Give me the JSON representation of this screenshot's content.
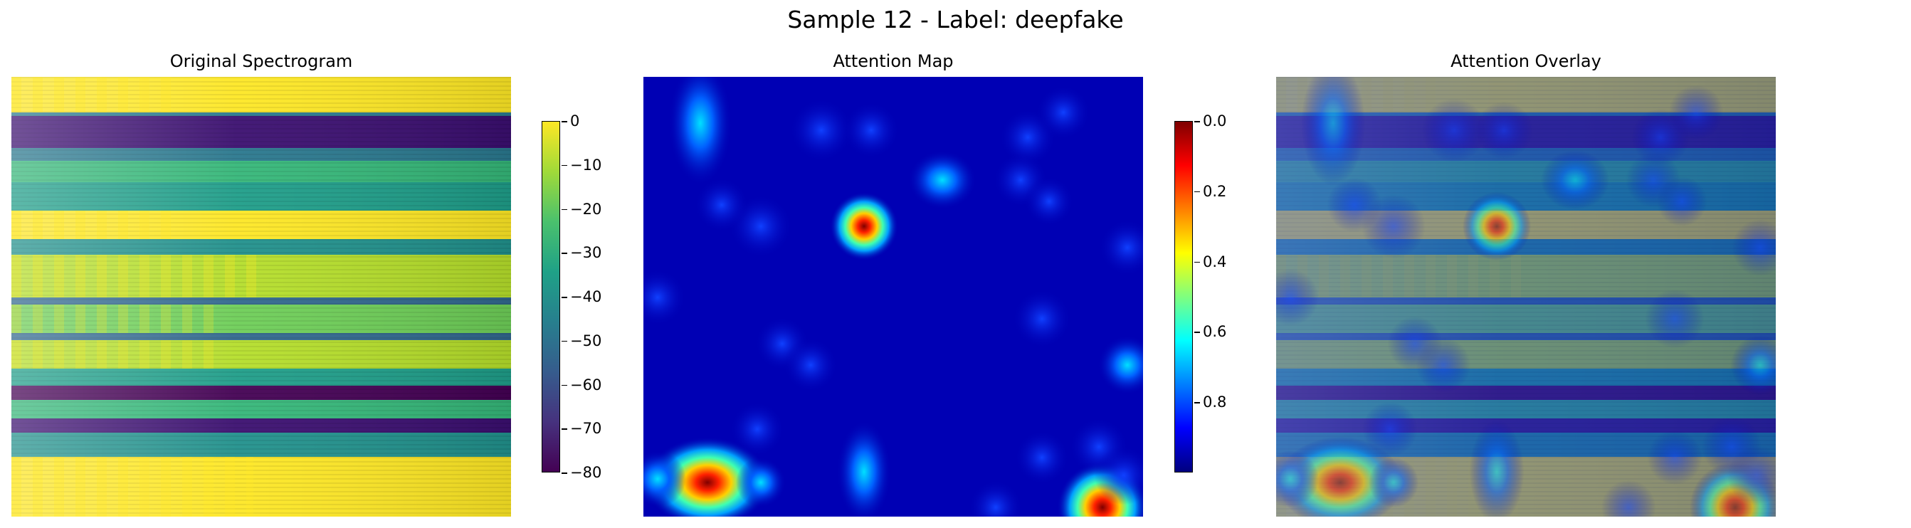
{
  "figure": {
    "suptitle": "Sample 12 - Label: deepfake"
  },
  "chart_data": [
    {
      "type": "heatmap",
      "title": "Original Spectrogram",
      "colormap": "viridis",
      "colorbar": {
        "range": [
          -80,
          0
        ],
        "ticks": [
          "0",
          "−10",
          "−20",
          "−30",
          "−40",
          "−50",
          "−60",
          "−70",
          "−80"
        ]
      }
    },
    {
      "type": "heatmap",
      "title": "Attention Map",
      "colormap": "jet",
      "colorbar": {
        "range": [
          0,
          1
        ],
        "ticks": [
          "0.8",
          "0.6",
          "0.4",
          "0.2",
          "0.0"
        ]
      }
    },
    {
      "type": "heatmap",
      "title": "Attention Overlay",
      "colormap": "viridis + jet overlay"
    }
  ]
}
